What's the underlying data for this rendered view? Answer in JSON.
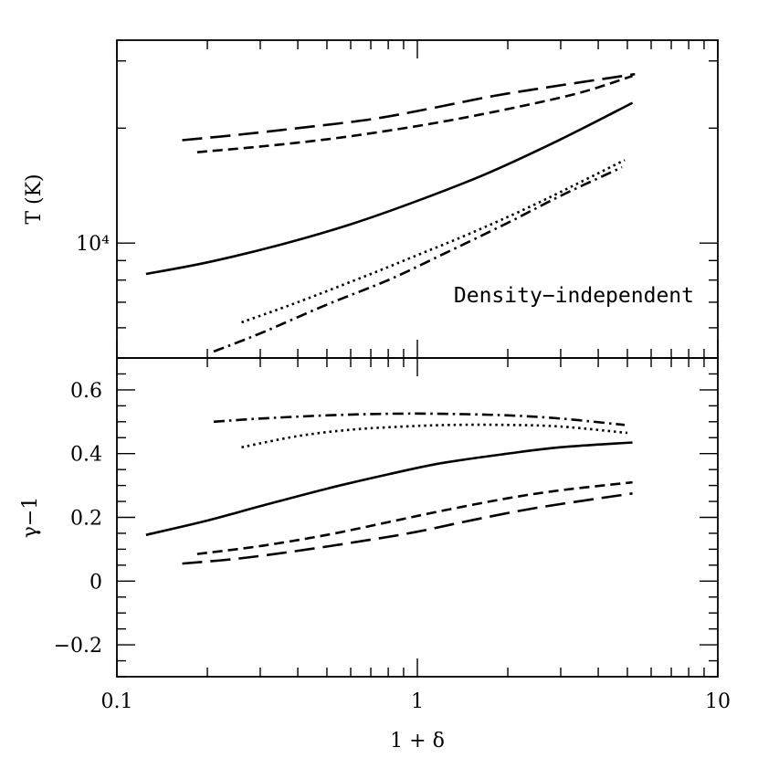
{
  "chart_data": [
    {
      "type": "line",
      "panel": "top",
      "xscale": "log",
      "yscale": "log",
      "xlim": [
        0.1,
        10
      ],
      "ylim": [
        5000,
        34000
      ],
      "ylabel": "T (K)",
      "xlabel": "",
      "y_tick_labels": [
        {
          "value": 10000,
          "text": "10⁴"
        }
      ],
      "x_tick_labels": [],
      "annotation": "Density−independent",
      "series": [
        {
          "style": "solid",
          "x": [
            0.125,
            0.2,
            0.35,
            0.6,
            1.0,
            1.7,
            3.0,
            5.2
          ],
          "y": [
            8300,
            8900,
            9900,
            11200,
            12900,
            15200,
            18700,
            23300
          ]
        },
        {
          "style": "shortdash",
          "x": [
            0.185,
            0.3,
            0.5,
            0.8,
            1.3,
            2.2,
            3.5,
            5.2
          ],
          "y": [
            17300,
            17900,
            18700,
            19700,
            21000,
            22800,
            24800,
            27400
          ]
        },
        {
          "style": "longdash",
          "x": [
            0.165,
            0.25,
            0.4,
            0.7,
            1.1,
            1.8,
            3.0,
            5.3
          ],
          "y": [
            18600,
            19200,
            20000,
            21100,
            22500,
            24300,
            25900,
            27700
          ]
        },
        {
          "style": "dotted",
          "x": [
            0.26,
            0.4,
            0.7,
            1.0,
            1.5,
            2.5,
            4.9
          ],
          "y": [
            6200,
            7000,
            8300,
            9300,
            10600,
            12700,
            16500
          ]
        },
        {
          "style": "dashdot",
          "x": [
            0.21,
            0.3,
            0.5,
            0.8,
            1.2,
            2.0,
            3.0,
            4.8
          ],
          "y": [
            5200,
            5800,
            6900,
            8000,
            9300,
            11300,
            13300,
            15800
          ]
        }
      ]
    },
    {
      "type": "line",
      "panel": "bottom",
      "xscale": "log",
      "xlim": [
        0.1,
        10
      ],
      "ylim": [
        -0.3,
        0.7
      ],
      "ylabel": "γ−1",
      "xlabel": "1 + δ",
      "y_tick_labels": [
        {
          "value": -0.2,
          "text": "−0.2"
        },
        {
          "value": 0,
          "text": "0"
        },
        {
          "value": 0.2,
          "text": "0.2"
        },
        {
          "value": 0.4,
          "text": "0.4"
        },
        {
          "value": 0.6,
          "text": "0.6"
        }
      ],
      "x_tick_labels": [
        {
          "value": 0.1,
          "text": "0.1"
        },
        {
          "value": 1,
          "text": "1"
        },
        {
          "value": 10,
          "text": "10"
        }
      ],
      "series": [
        {
          "style": "solid",
          "x": [
            0.125,
            0.2,
            0.3,
            0.5,
            0.8,
            1.2,
            2.0,
            3.0,
            5.2
          ],
          "y": [
            0.145,
            0.19,
            0.235,
            0.29,
            0.335,
            0.37,
            0.4,
            0.42,
            0.435
          ]
        },
        {
          "style": "shortdash",
          "x": [
            0.185,
            0.3,
            0.5,
            0.8,
            1.2,
            2.0,
            3.0,
            5.2
          ],
          "y": [
            0.085,
            0.11,
            0.145,
            0.185,
            0.22,
            0.26,
            0.285,
            0.31
          ]
        },
        {
          "style": "longdash",
          "x": [
            0.165,
            0.25,
            0.4,
            0.7,
            1.0,
            1.5,
            2.5,
            5.2
          ],
          "y": [
            0.055,
            0.07,
            0.095,
            0.13,
            0.155,
            0.19,
            0.23,
            0.275
          ]
        },
        {
          "style": "dotted",
          "x": [
            0.26,
            0.4,
            0.6,
            0.9,
            1.3,
            2.0,
            3.0,
            5.0
          ],
          "y": [
            0.42,
            0.455,
            0.475,
            0.485,
            0.49,
            0.49,
            0.485,
            0.465
          ]
        },
        {
          "style": "dashdot",
          "x": [
            0.21,
            0.3,
            0.5,
            0.8,
            1.2,
            2.0,
            3.0,
            4.9
          ],
          "y": [
            0.5,
            0.51,
            0.52,
            0.525,
            0.525,
            0.52,
            0.51,
            0.49
          ]
        }
      ]
    }
  ]
}
